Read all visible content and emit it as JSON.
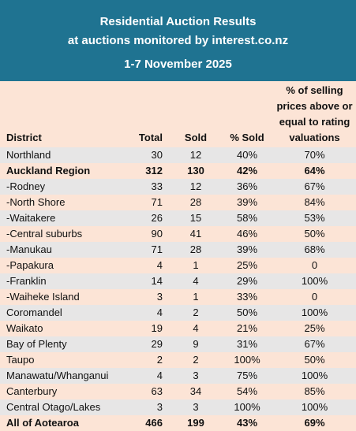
{
  "banner": {
    "title_line1": "Residential Auction Results",
    "title_line2": "at auctions monitored by interest.co.nz",
    "date": "1-7 November 2025"
  },
  "table": {
    "headers": {
      "district": "District",
      "total": "Total",
      "sold": "Sold",
      "pct_sold": "% Sold",
      "pct_above": "% of selling prices above or equal to rating valuations"
    },
    "rows": [
      {
        "district": "Northland",
        "total": "30",
        "sold": "12",
        "pct_sold": "40%",
        "pct_above": "70%"
      },
      {
        "district": "Auckland Region",
        "total": "312",
        "sold": "130",
        "pct_sold": "42%",
        "pct_above": "64%"
      },
      {
        "district": "-Rodney",
        "total": "33",
        "sold": "12",
        "pct_sold": "36%",
        "pct_above": "67%"
      },
      {
        "district": "-North Shore",
        "total": "71",
        "sold": "28",
        "pct_sold": "39%",
        "pct_above": "84%"
      },
      {
        "district": "-Waitakere",
        "total": "26",
        "sold": "15",
        "pct_sold": "58%",
        "pct_above": "53%"
      },
      {
        "district": "-Central suburbs",
        "total": "90",
        "sold": "41",
        "pct_sold": "46%",
        "pct_above": "50%"
      },
      {
        "district": "-Manukau",
        "total": "71",
        "sold": "28",
        "pct_sold": "39%",
        "pct_above": "68%"
      },
      {
        "district": "-Papakura",
        "total": "4",
        "sold": "1",
        "pct_sold": "25%",
        "pct_above": "0"
      },
      {
        "district": "-Franklin",
        "total": "14",
        "sold": "4",
        "pct_sold": "29%",
        "pct_above": "100%"
      },
      {
        "district": "-Waiheke Island",
        "total": "3",
        "sold": "1",
        "pct_sold": "33%",
        "pct_above": "0"
      },
      {
        "district": "Coromandel",
        "total": "4",
        "sold": "2",
        "pct_sold": "50%",
        "pct_above": "100%"
      },
      {
        "district": "Waikato",
        "total": "19",
        "sold": "4",
        "pct_sold": "21%",
        "pct_above": "25%"
      },
      {
        "district": "Bay of Plenty",
        "total": "29",
        "sold": "9",
        "pct_sold": "31%",
        "pct_above": "67%"
      },
      {
        "district": "Taupo",
        "total": "2",
        "sold": "2",
        "pct_sold": "100%",
        "pct_above": "50%"
      },
      {
        "district": "Manawatu/Whanganui",
        "total": "4",
        "sold": "3",
        "pct_sold": "75%",
        "pct_above": "100%"
      },
      {
        "district": "Canterbury",
        "total": "63",
        "sold": "34",
        "pct_sold": "54%",
        "pct_above": "85%"
      },
      {
        "district": "Central Otago/Lakes",
        "total": "3",
        "sold": "3",
        "pct_sold": "100%",
        "pct_above": "100%"
      },
      {
        "district": "All of Aotearoa",
        "total": "466",
        "sold": "199",
        "pct_sold": "43%",
        "pct_above": "69%"
      }
    ]
  }
}
